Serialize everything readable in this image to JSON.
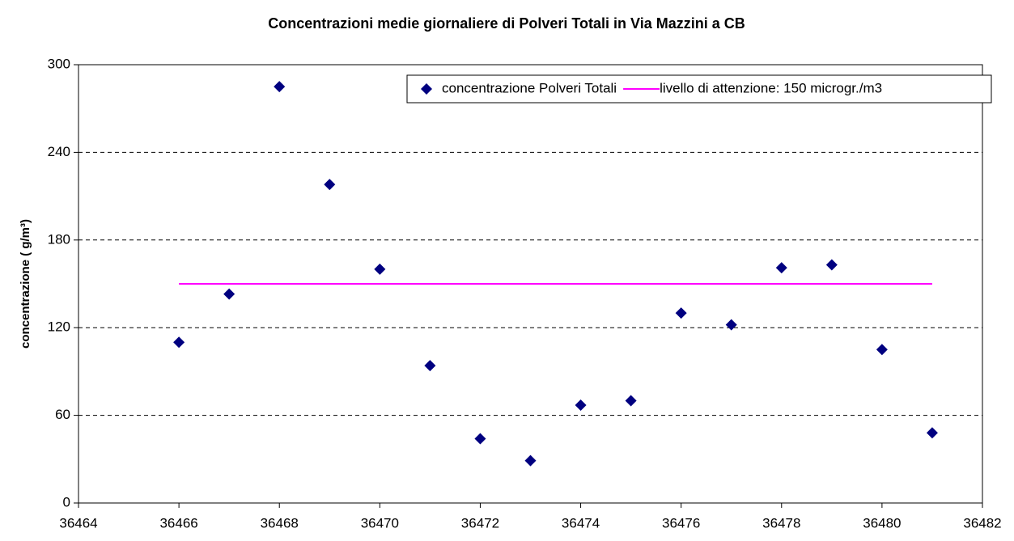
{
  "chart_data": {
    "type": "scatter",
    "title": "Concentrazioni medie giornaliere di Polveri Totali in Via Mazzini a CB",
    "y_label": "concentrazione ( g/m³)",
    "xlim": [
      36464,
      36482
    ],
    "xticks": [
      36464,
      36466,
      36468,
      36470,
      36472,
      36474,
      36476,
      36478,
      36480,
      36482
    ],
    "ylim": [
      0,
      300
    ],
    "yticks": [
      0,
      60,
      120,
      180,
      240,
      300
    ],
    "grid": true,
    "legend": "top-right",
    "series": [
      {
        "name": "concentrazione Polveri Totali",
        "color": "#000080",
        "mode": "markers",
        "x": [
          36466,
          36467,
          36468,
          36469,
          36470,
          36471,
          36472,
          36473,
          36474,
          36475,
          36476,
          36477,
          36478,
          36479,
          36480,
          36481
        ],
        "values": [
          110,
          143,
          285,
          218,
          160,
          94,
          44,
          29,
          67,
          70,
          130,
          122,
          161,
          163,
          105,
          48
        ]
      },
      {
        "name": "livello di attenzione: 150 microgr./m3",
        "color": "#ff00ff",
        "mode": "line",
        "x": [
          36466,
          36481
        ],
        "values": [
          150,
          150
        ]
      }
    ]
  }
}
